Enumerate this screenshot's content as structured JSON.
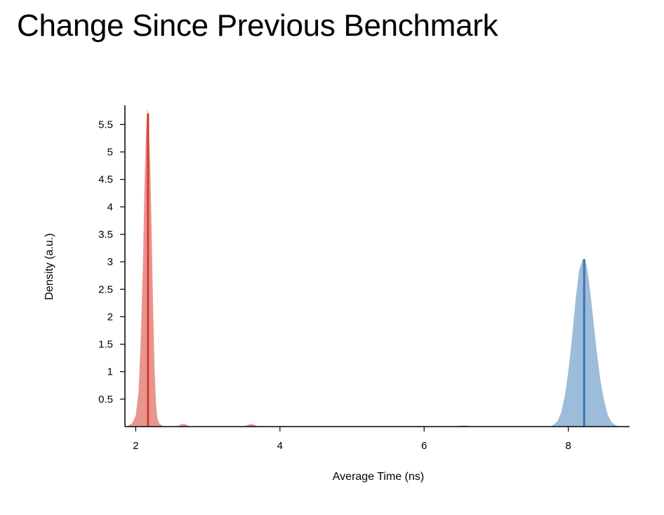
{
  "title": "Change Since Previous Benchmark",
  "chart_data": {
    "type": "area",
    "title": "Change Since Previous Benchmark",
    "xlabel": "Average Time (ns)",
    "ylabel": "Density (a.u.)",
    "xlim": [
      1.85,
      8.85
    ],
    "ylim": [
      0,
      5.85
    ],
    "x_ticks": [
      2,
      4,
      6,
      8
    ],
    "y_ticks": [
      0.5,
      1,
      1.5,
      2,
      2.5,
      3,
      3.5,
      4,
      4.5,
      5,
      5.5
    ],
    "grid": false,
    "legend": "none",
    "series": [
      {
        "color": "#e8958e",
        "mean_color": "#d93a32",
        "mean": 2.17,
        "x": [
          1.9,
          1.95,
          2.0,
          2.04,
          2.07,
          2.1,
          2.12,
          2.14,
          2.16,
          2.18,
          2.2,
          2.22,
          2.24,
          2.26,
          2.28,
          2.3,
          2.33,
          2.36,
          2.4
        ],
        "density": [
          0.02,
          0.06,
          0.2,
          0.65,
          1.6,
          3.0,
          4.3,
          5.3,
          5.8,
          5.6,
          4.8,
          3.6,
          2.2,
          1.1,
          0.45,
          0.15,
          0.05,
          0.02,
          0.0
        ],
        "outlier_bumps": [
          {
            "x": [
              2.58,
              2.62,
              2.66,
              2.7,
              2.74
            ],
            "density": [
              0.0,
              0.04,
              0.05,
              0.04,
              0.0
            ]
          },
          {
            "x": [
              3.5,
              3.55,
              3.6,
              3.65,
              3.7
            ],
            "density": [
              0.0,
              0.03,
              0.05,
              0.03,
              0.0
            ]
          }
        ]
      },
      {
        "color": "#9dbcda",
        "mean_color": "#3e76ad",
        "mean": 8.22,
        "x": [
          7.75,
          7.8,
          7.85,
          7.9,
          7.95,
          8.0,
          8.05,
          8.1,
          8.15,
          8.2,
          8.23,
          8.26,
          8.3,
          8.35,
          8.4,
          8.45,
          8.5,
          8.55,
          8.6,
          8.65,
          8.7
        ],
        "density": [
          0.0,
          0.04,
          0.1,
          0.25,
          0.55,
          1.0,
          1.6,
          2.3,
          2.85,
          3.05,
          3.05,
          2.9,
          2.5,
          1.9,
          1.3,
          0.8,
          0.45,
          0.2,
          0.08,
          0.03,
          0.0
        ],
        "outlier_bumps": [
          {
            "x": [
              6.45,
              6.5,
              6.55,
              6.6,
              6.65
            ],
            "density": [
              0.0,
              0.02,
              0.02,
              0.02,
              0.0
            ]
          }
        ]
      }
    ]
  }
}
